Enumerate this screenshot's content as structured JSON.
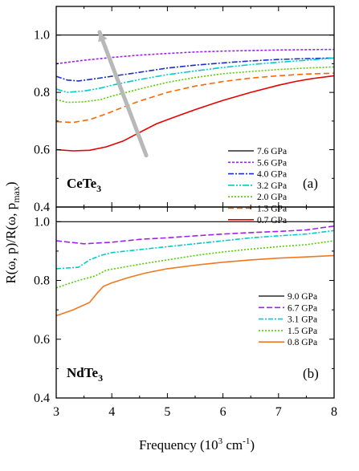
{
  "figure": {
    "ylabel_main": "R(ω, p)/R(ω, p",
    "ylabel_sub": "max",
    "ylabel_end": ")",
    "xlabel_main": "Frequency (10",
    "xlabel_sup1": "3",
    "xlabel_mid": " cm",
    "xlabel_sup2": "-1",
    "xlabel_end": ")"
  },
  "chart_data": [
    {
      "type": "line",
      "panel": "(a)",
      "compound_main": "CeTe",
      "compound_sub": "3",
      "xlim": [
        3,
        8
      ],
      "ylim": [
        0.4,
        1.1
      ],
      "x_ticks": [
        "3",
        "4",
        "5",
        "6",
        "7",
        "8"
      ],
      "y_ticks": [
        "0.4",
        "0.6",
        "0.8",
        "1.0"
      ],
      "legend_position": "lower-right",
      "arrow": {
        "from": [
          4.62,
          0.58
        ],
        "to": [
          3.78,
          1.01
        ],
        "color": "#b8b8b8"
      },
      "series": [
        {
          "name": "7.6 GPa",
          "color": "#000000",
          "dash": "",
          "x": [
            3,
            8
          ],
          "y": [
            1.0,
            1.0
          ]
        },
        {
          "name": "5.6 GPa",
          "color": "#a020f0",
          "dash": "3,2",
          "x": [
            3,
            3.5,
            4,
            4.5,
            5,
            5.5,
            6,
            6.5,
            7,
            7.5,
            8
          ],
          "y": [
            0.9,
            0.912,
            0.922,
            0.93,
            0.936,
            0.941,
            0.944,
            0.946,
            0.948,
            0.949,
            0.95
          ]
        },
        {
          "name": "4.0 GPa",
          "color": "#1c2fcf",
          "dash": "7,2,2,2",
          "x": [
            3,
            3.2,
            3.4,
            3.6,
            4,
            4.5,
            5,
            5.5,
            6,
            6.5,
            7,
            7.5,
            8
          ],
          "y": [
            0.856,
            0.843,
            0.84,
            0.845,
            0.856,
            0.87,
            0.885,
            0.895,
            0.903,
            0.91,
            0.915,
            0.918,
            0.92
          ]
        },
        {
          "name": "3.2 GPa",
          "color": "#00cccc",
          "dash": "8,2,2,2,2,2",
          "x": [
            3,
            3.2,
            3.5,
            3.8,
            4,
            4.5,
            5,
            5.5,
            6,
            6.5,
            7,
            7.5,
            8
          ],
          "y": [
            0.812,
            0.8,
            0.805,
            0.815,
            0.825,
            0.845,
            0.862,
            0.875,
            0.887,
            0.897,
            0.905,
            0.912,
            0.92
          ]
        },
        {
          "name": "2.0 GPa",
          "color": "#55cc00",
          "dash": "2,2",
          "x": [
            3,
            3.2,
            3.5,
            3.8,
            4,
            4.5,
            5,
            5.5,
            6,
            6.5,
            7,
            7.5,
            8
          ],
          "y": [
            0.775,
            0.765,
            0.767,
            0.775,
            0.787,
            0.812,
            0.835,
            0.852,
            0.865,
            0.873,
            0.88,
            0.885,
            0.889
          ]
        },
        {
          "name": "1.3 GPa",
          "color": "#ff6600",
          "dash": "7,4",
          "x": [
            3,
            3.3,
            3.6,
            3.9,
            4.2,
            4.5,
            5,
            5.5,
            6,
            6.5,
            7,
            7.5,
            8
          ],
          "y": [
            0.698,
            0.695,
            0.705,
            0.725,
            0.748,
            0.77,
            0.8,
            0.822,
            0.838,
            0.85,
            0.858,
            0.864,
            0.867
          ]
        },
        {
          "name": "0.7 GPa",
          "color": "#e60000",
          "dash": "",
          "x": [
            3,
            3.3,
            3.6,
            3.9,
            4.2,
            4.5,
            4.8,
            5.1,
            5.5,
            6,
            6.5,
            7,
            7.3,
            7.6,
            8
          ],
          "y": [
            0.6,
            0.596,
            0.598,
            0.61,
            0.63,
            0.66,
            0.69,
            0.712,
            0.74,
            0.772,
            0.8,
            0.825,
            0.838,
            0.848,
            0.858
          ]
        }
      ]
    },
    {
      "type": "line",
      "panel": "(b)",
      "compound_main": "NdTe",
      "compound_sub": "3",
      "xlim": [
        3,
        8
      ],
      "ylim": [
        0.4,
        1.05
      ],
      "x_ticks": [
        "3",
        "4",
        "5",
        "6",
        "7",
        "8"
      ],
      "y_ticks": [
        "0.4",
        "0.6",
        "0.8",
        "1.0"
      ],
      "legend_position": "lower-right",
      "series": [
        {
          "name": "9.0 GPa",
          "color": "#000000",
          "dash": "",
          "x": [
            3,
            8
          ],
          "y": [
            1.0,
            1.0
          ]
        },
        {
          "name": "6.7 GPa",
          "color": "#a020f0",
          "dash": "7,3",
          "x": [
            3,
            3.5,
            4,
            4.5,
            5,
            5.5,
            6,
            6.5,
            7,
            7.5,
            7.8,
            8
          ],
          "y": [
            0.935,
            0.925,
            0.93,
            0.94,
            0.945,
            0.952,
            0.958,
            0.963,
            0.967,
            0.972,
            0.98,
            0.985
          ]
        },
        {
          "name": "3.1 GPa",
          "color": "#00cccc",
          "dash": "6,2,2,2",
          "x": [
            3,
            3.4,
            3.6,
            3.8,
            4,
            4.5,
            5,
            5.5,
            6,
            6.5,
            7,
            7.5,
            8
          ],
          "y": [
            0.84,
            0.845,
            0.87,
            0.885,
            0.895,
            0.905,
            0.915,
            0.925,
            0.935,
            0.945,
            0.952,
            0.958,
            0.97
          ]
        },
        {
          "name": "1.5 GPa",
          "color": "#55cc00",
          "dash": "2,2",
          "x": [
            3,
            3.4,
            3.7,
            3.9,
            4.2,
            4.5,
            5,
            5.5,
            6,
            6.5,
            7,
            7.5,
            8
          ],
          "y": [
            0.775,
            0.8,
            0.815,
            0.835,
            0.845,
            0.855,
            0.87,
            0.885,
            0.897,
            0.907,
            0.915,
            0.922,
            0.935
          ]
        },
        {
          "name": "0.8 GPa",
          "color": "#f07820",
          "dash": "",
          "x": [
            3,
            3.3,
            3.6,
            3.75,
            3.85,
            4,
            4.3,
            4.6,
            5,
            5.5,
            6,
            6.5,
            7,
            7.5,
            8
          ],
          "y": [
            0.68,
            0.7,
            0.725,
            0.76,
            0.78,
            0.792,
            0.81,
            0.825,
            0.84,
            0.852,
            0.862,
            0.87,
            0.876,
            0.88,
            0.885
          ]
        }
      ]
    }
  ]
}
